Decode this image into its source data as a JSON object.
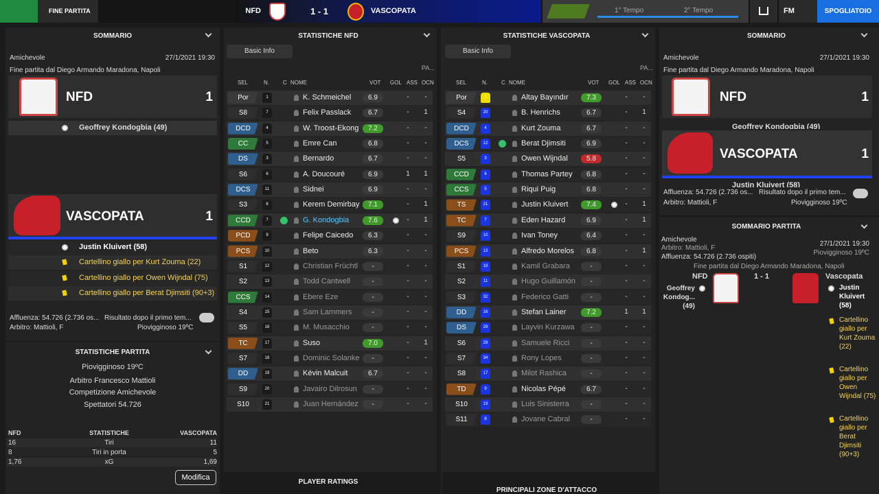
{
  "topbar": {
    "status": "FINE PARTITA",
    "home": "NFD",
    "score": "1 - 1",
    "away": "VASCOPATA",
    "half1": "1° Tempo",
    "half2": "2° Tempo",
    "fm": "FM",
    "button": "SPOGLIATOIO"
  },
  "summary": {
    "title": "SOMMARIO",
    "competition": "Amichevole",
    "date": "27/1/2021 19:30",
    "venue": "Fine partita dal Diego Armando Maradona, Napoli",
    "home": {
      "name": "NFD",
      "goals": 1,
      "events": [
        "Geoffrey Kondogbia (49)"
      ]
    },
    "away": {
      "name": "VASCOPATA",
      "goals": 1,
      "events": [
        "Justin Kluivert (58)",
        "Cartellino giallo per Kurt Zouma (22)",
        "Cartellino giallo per Owen Wijndal (75)",
        "Cartellino giallo per Berat Djimsiti (90+3)"
      ]
    },
    "attendance": "Affluenza: 54.726 (2.736 os...",
    "halftime": "Risultato dopo il primo tem...",
    "referee": "Arbitro: Mattioli, F",
    "weather": "Piovigginoso 19ºC"
  },
  "match_stats": {
    "title": "STATISTICHE PARTITA",
    "weather": "Piovigginoso 19ºC",
    "referee": "Arbitro Francesco Mattioli",
    "competition": "Competizione Amichevole",
    "spectators": "Spettatori 54.726",
    "columns": [
      "NFD",
      "STATISTICHE",
      "VASCOPATA"
    ],
    "rows": [
      [
        "16",
        "Tiri",
        "11"
      ],
      [
        "8",
        "Tiri in porta",
        "5"
      ],
      [
        "1,76",
        "xG",
        "1,69"
      ]
    ],
    "button": "Modifica"
  },
  "home_table": {
    "title": "STATISTICHE NFD",
    "filter": "Basic Info",
    "pa_header": "PA...",
    "columns": [
      "SEL",
      "N.",
      "C",
      "NOME",
      "VOT",
      "GOL",
      "ASS",
      "OCN"
    ],
    "rows": [
      {
        "pos": "Por",
        "num": "1",
        "name": "K. Schmeichel",
        "vot": "6.9",
        "ass": "-",
        "ocn": "-"
      },
      {
        "pos": "S8",
        "num": "7",
        "name": "Felix Passlack",
        "vot": "6.7",
        "ass": "-",
        "ocn": "1"
      },
      {
        "pos": "DCD",
        "num": "4",
        "name": "W. Troost-Ekong",
        "vot": "7.2",
        "ass": "-",
        "ocn": "-"
      },
      {
        "pos": "CC",
        "num": "5",
        "name": "Emre Can",
        "vot": "6.8",
        "ass": "-",
        "ocn": "-"
      },
      {
        "pos": "DS",
        "num": "3",
        "name": "Bernardo",
        "vot": "6.7",
        "ass": "-",
        "ocn": "-"
      },
      {
        "pos": "S6",
        "num": "6",
        "name": "A. Doucouré",
        "vot": "6.9",
        "ass": "1",
        "ocn": "1"
      },
      {
        "pos": "DCS",
        "num": "11",
        "name": "Sidnei",
        "vot": "6.9",
        "ass": "-",
        "ocn": "-"
      },
      {
        "pos": "S3",
        "num": "8",
        "name": "Kerem Demirbay",
        "vot": "7.1",
        "ass": "-",
        "ocn": "1"
      },
      {
        "pos": "CCD",
        "num": "7",
        "name": "G. Kondogbia",
        "vot": "7.6",
        "ass": "-",
        "ocn": "1",
        "captain": true,
        "goal": true
      },
      {
        "pos": "PCD",
        "num": "9",
        "name": "Felipe Caicedo",
        "vot": "6.3",
        "ass": "-",
        "ocn": "-"
      },
      {
        "pos": "PCS",
        "num": "10",
        "name": "Beto",
        "vot": "6.3",
        "ass": "-",
        "ocn": "-"
      },
      {
        "pos": "S1",
        "num": "12",
        "name": "Christian Früchtl",
        "vot": "-",
        "ass": "-",
        "ocn": "-"
      },
      {
        "pos": "S2",
        "num": "13",
        "name": "Todd Cantwell",
        "vot": "-",
        "ass": "-",
        "ocn": "-"
      },
      {
        "pos": "CCS",
        "num": "14",
        "name": "Ebere Eze",
        "vot": "-",
        "ass": "-",
        "ocn": "-"
      },
      {
        "pos": "S4",
        "num": "15",
        "name": "Sam Lammers",
        "vot": "-",
        "ass": "-",
        "ocn": "-"
      },
      {
        "pos": "S5",
        "num": "16",
        "name": "M. Musacchio",
        "vot": "-",
        "ass": "-",
        "ocn": "-"
      },
      {
        "pos": "TC",
        "num": "17",
        "name": "Suso",
        "vot": "7.0",
        "ass": "-",
        "ocn": "1"
      },
      {
        "pos": "S7",
        "num": "18",
        "name": "Dominic Solanke",
        "vot": "-",
        "ass": "-",
        "ocn": "-"
      },
      {
        "pos": "DD",
        "num": "19",
        "name": "Kévin Malcuit",
        "vot": "6.7",
        "ass": "-",
        "ocn": "-"
      },
      {
        "pos": "S9",
        "num": "20",
        "name": "Javairo Dilrosun",
        "vot": "-",
        "ass": "-",
        "ocn": "-"
      },
      {
        "pos": "S10",
        "num": "21",
        "name": "Juan Hernández",
        "vot": "-",
        "ass": "-",
        "ocn": "-"
      }
    ],
    "footer": "PLAYER RATINGS"
  },
  "away_table": {
    "title": "STATISTICHE VASCOPATA",
    "filter": "Basic Info",
    "pa_header": "PA...",
    "columns": [
      "SEL",
      "N.",
      "C",
      "NOME",
      "VOT",
      "GOL",
      "ASS",
      "OCN"
    ],
    "rows": [
      {
        "pos": "Por",
        "num": "1",
        "name": "Altay Bayındır",
        "vot": "7.3",
        "ass": "-",
        "ocn": "-"
      },
      {
        "pos": "S4",
        "num": "20",
        "name": "B. Henrichs",
        "vot": "6.7",
        "ass": "-",
        "ocn": "1"
      },
      {
        "pos": "DCD",
        "num": "4",
        "name": "Kurt Zouma",
        "vot": "6.7",
        "ass": "-",
        "ocn": "-"
      },
      {
        "pos": "DCS",
        "num": "12",
        "name": "Berat Djimsiti",
        "vot": "6.9",
        "ass": "-",
        "ocn": "-",
        "captain": true
      },
      {
        "pos": "S5",
        "num": "3",
        "name": "Owen Wijndal",
        "vot": "5.8",
        "ass": "-",
        "ocn": "-"
      },
      {
        "pos": "CCD",
        "num": "6",
        "name": "Thomas Partey",
        "vot": "6.8",
        "ass": "-",
        "ocn": "-"
      },
      {
        "pos": "CCS",
        "num": "5",
        "name": "Riqui Puig",
        "vot": "6.8",
        "ass": "-",
        "ocn": "-"
      },
      {
        "pos": "TS",
        "num": "21",
        "name": "Justin Kluivert",
        "vot": "7.4",
        "ass": "-",
        "ocn": "1",
        "goal": true
      },
      {
        "pos": "TC",
        "num": "7",
        "name": "Eden Hazard",
        "vot": "6.9",
        "ass": "-",
        "ocn": "1"
      },
      {
        "pos": "S9",
        "num": "10",
        "name": "Ivan Toney",
        "vot": "6.4",
        "ass": "-",
        "ocn": "-"
      },
      {
        "pos": "PCS",
        "num": "13",
        "name": "Alfredo Morelos",
        "vot": "6.8",
        "ass": "-",
        "ocn": "1"
      },
      {
        "pos": "S1",
        "num": "18",
        "name": "Kamil Grabara",
        "vot": "-",
        "ass": "-",
        "ocn": "-"
      },
      {
        "pos": "S2",
        "num": "11",
        "name": "Hugo Guillamón",
        "vot": "-",
        "ass": "-",
        "ocn": "-"
      },
      {
        "pos": "S3",
        "num": "32",
        "name": "Federico Gatti",
        "vot": "-",
        "ass": "-",
        "ocn": "-"
      },
      {
        "pos": "DD",
        "num": "16",
        "name": "Stefan Lainer",
        "vot": "7.2",
        "ass": "1",
        "ocn": "1"
      },
      {
        "pos": "DS",
        "num": "29",
        "name": "Layvin Kurzawa",
        "vot": "-",
        "ass": "-",
        "ocn": "-"
      },
      {
        "pos": "S6",
        "num": "28",
        "name": "Samuele Ricci",
        "vot": "-",
        "ass": "-",
        "ocn": "-"
      },
      {
        "pos": "S7",
        "num": "34",
        "name": "Rony Lopes",
        "vot": "-",
        "ass": "-",
        "ocn": "-"
      },
      {
        "pos": "S8",
        "num": "17",
        "name": "Milot Rashica",
        "vot": "-",
        "ass": "-",
        "ocn": "-"
      },
      {
        "pos": "TD",
        "num": "9",
        "name": "Nicolas Pépé",
        "vot": "6.7",
        "ass": "-",
        "ocn": "-"
      },
      {
        "pos": "S10",
        "num": "19",
        "name": "Luis Sinisterra",
        "vot": "-",
        "ass": "-",
        "ocn": "-"
      },
      {
        "pos": "S11",
        "num": "8",
        "name": "Jovane Cabral",
        "vot": "-",
        "ass": "-",
        "ocn": "-"
      }
    ],
    "footer": "PRINCIPALI ZONE D'ATTACCO"
  },
  "match_summary": {
    "title": "SOMMARIO PARTITA",
    "attendance": "Affluenza: 54.726 (2.736 ospiti)",
    "home": "NFD",
    "score": "1 - 1",
    "away": "Vascopata",
    "home_events": [
      "Geoffrey Kondog... (49)"
    ],
    "away_events": [
      "Justin Kluivert (58)",
      "Cartellino giallo per Kurt Zouma (22)",
      "Cartellino giallo per Owen Wijndal (75)",
      "Cartellino giallo per Berat Djimsiti (90+3)"
    ]
  }
}
